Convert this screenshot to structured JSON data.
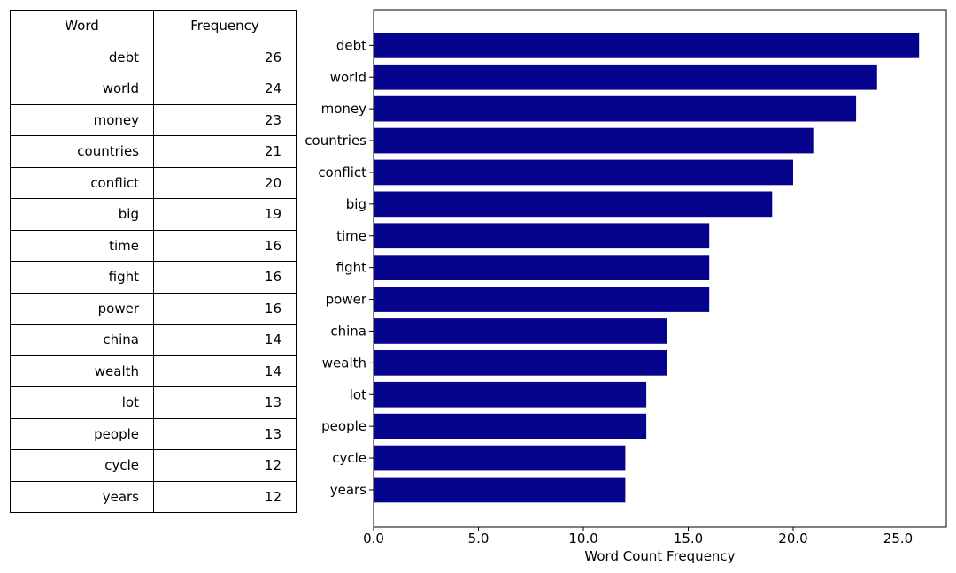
{
  "table": {
    "headers": [
      "Word",
      "Frequency"
    ],
    "rows": [
      [
        "debt",
        "26"
      ],
      [
        "world",
        "24"
      ],
      [
        "money",
        "23"
      ],
      [
        "countries",
        "21"
      ],
      [
        "conflict",
        "20"
      ],
      [
        "big",
        "19"
      ],
      [
        "time",
        "16"
      ],
      [
        "fight",
        "16"
      ],
      [
        "power",
        "16"
      ],
      [
        "china",
        "14"
      ],
      [
        "wealth",
        "14"
      ],
      [
        "lot",
        "13"
      ],
      [
        "people",
        "13"
      ],
      [
        "cycle",
        "12"
      ],
      [
        "years",
        "12"
      ]
    ]
  },
  "chart_data": {
    "type": "bar",
    "orientation": "horizontal",
    "categories": [
      "debt",
      "world",
      "money",
      "countries",
      "conflict",
      "big",
      "time",
      "fight",
      "power",
      "china",
      "wealth",
      "lot",
      "people",
      "cycle",
      "years"
    ],
    "values": [
      26,
      24,
      23,
      21,
      20,
      19,
      16,
      16,
      16,
      14,
      14,
      13,
      13,
      12,
      12
    ],
    "xlabel": "Word Count Frequency",
    "ylabel": "",
    "xlim": [
      0,
      27.3
    ],
    "xticks": [
      0,
      5,
      10,
      15,
      20,
      25
    ],
    "xtick_labels": [
      "0.0",
      "5.0",
      "10.0",
      "15.0",
      "20.0",
      "25.0"
    ],
    "bar_color": "#06038d",
    "grid": false
  }
}
